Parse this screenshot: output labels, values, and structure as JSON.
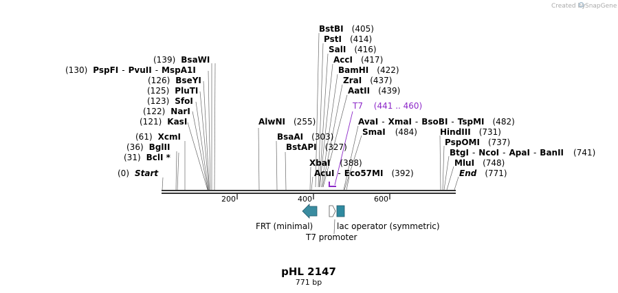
{
  "credit": {
    "text": "Created by",
    "brand": "SnapGene"
  },
  "plasmid": {
    "name": "pHL 2147",
    "length_label": "771 bp",
    "length": 771
  },
  "ruler": {
    "ticks": [
      "200",
      "400",
      "600"
    ]
  },
  "sites": [
    {
      "key": "start",
      "pos": "(0)",
      "names": [
        "Start"
      ],
      "italic": true
    },
    {
      "key": "bcli",
      "pos": "(31)",
      "names": [
        "BclI *"
      ]
    },
    {
      "key": "bglii",
      "pos": "(36)",
      "names": [
        "BglII"
      ]
    },
    {
      "key": "xcmi",
      "pos": "(61)",
      "names": [
        "XcmI"
      ]
    },
    {
      "key": "kasi",
      "pos": "(121)",
      "names": [
        "KasI"
      ]
    },
    {
      "key": "nari",
      "pos": "(122)",
      "names": [
        "NarI"
      ]
    },
    {
      "key": "sfoi",
      "pos": "(123)",
      "names": [
        "SfoI"
      ]
    },
    {
      "key": "pluti",
      "pos": "(125)",
      "names": [
        "PluTI"
      ]
    },
    {
      "key": "bseyi",
      "pos": "(126)",
      "names": [
        "BseYI"
      ]
    },
    {
      "key": "pspfi",
      "pos": "(130)",
      "names": [
        "PspFI",
        "PvuII",
        "MspA1I"
      ]
    },
    {
      "key": "bsawi",
      "pos": "(139)",
      "names": [
        "BsaWI"
      ]
    },
    {
      "key": "alwni",
      "pos": "(255)",
      "names": [
        "AlwNI"
      ]
    },
    {
      "key": "bsaai",
      "pos": "(303)",
      "names": [
        "BsaAI"
      ]
    },
    {
      "key": "bstapi",
      "pos": "(327)",
      "names": [
        "BstAPI"
      ]
    },
    {
      "key": "xbai",
      "pos": "(388)",
      "names": [
        "XbaI"
      ]
    },
    {
      "key": "acui",
      "pos": "(392)",
      "names": [
        "AcuI",
        "Eco57MI"
      ]
    },
    {
      "key": "bstbi",
      "pos": "(405)",
      "names": [
        "BstBI"
      ]
    },
    {
      "key": "psti",
      "pos": "(414)",
      "names": [
        "PstI"
      ]
    },
    {
      "key": "sali",
      "pos": "(416)",
      "names": [
        "SalI"
      ]
    },
    {
      "key": "acci",
      "pos": "(417)",
      "names": [
        "AccI"
      ]
    },
    {
      "key": "bamhi",
      "pos": "(422)",
      "names": [
        "BamHI"
      ]
    },
    {
      "key": "zrai",
      "pos": "(437)",
      "names": [
        "ZraI"
      ]
    },
    {
      "key": "aatii",
      "pos": "(439)",
      "names": [
        "AatII"
      ]
    },
    {
      "key": "avai",
      "pos": "(482)",
      "names": [
        "AvaI",
        "XmaI",
        "BsoBI",
        "TspMI"
      ]
    },
    {
      "key": "smai",
      "pos": "(484)",
      "names": [
        "SmaI"
      ]
    },
    {
      "key": "hindiii",
      "pos": "(731)",
      "names": [
        "HindIII"
      ]
    },
    {
      "key": "pspomi",
      "pos": "(737)",
      "names": [
        "PspOMI"
      ]
    },
    {
      "key": "btgi",
      "pos": "(741)",
      "names": [
        "BtgI",
        "NcoI",
        "ApaI",
        "BanII"
      ]
    },
    {
      "key": "mlui",
      "pos": "(748)",
      "names": [
        "MluI"
      ]
    },
    {
      "key": "end",
      "pos": "(771)",
      "names": [
        "End"
      ],
      "italic": true
    }
  ],
  "primer": {
    "name": "T7",
    "range": "(441 .. 460)",
    "color": "#8c27c8"
  },
  "features": [
    {
      "key": "frt",
      "label": "FRT (minimal)",
      "color": "#3a8ca0"
    },
    {
      "key": "t7p",
      "label": "T7 promoter",
      "color": "#ffffff"
    },
    {
      "key": "lacop",
      "label": "lac operator (symmetric)",
      "color": "#2f8aa0"
    }
  ],
  "colors": {
    "backbone": "#333333",
    "accent": "#8c27c8",
    "feature": "#3a8ca0"
  }
}
